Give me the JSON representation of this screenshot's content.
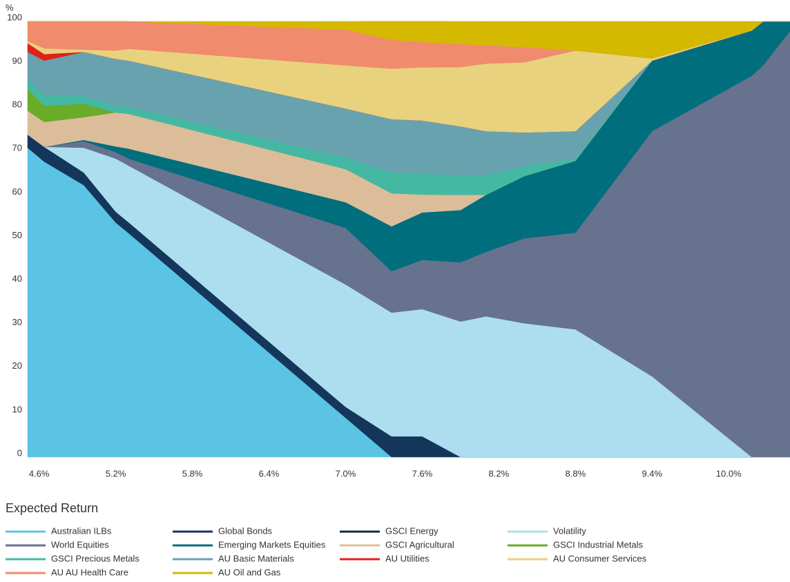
{
  "chart_data": {
    "type": "stacked_area",
    "y_unit": "%",
    "x_label": "Expected Return",
    "x": [
      4.51,
      4.64,
      4.95,
      5.2,
      5.3,
      7.0,
      7.36,
      7.6,
      7.9,
      8.1,
      8.4,
      8.8,
      9.4,
      10.18,
      10.27,
      10.48
    ],
    "xlim": [
      4.51,
      10.48
    ],
    "xticks": [
      {
        "value": 4.6,
        "label": "4.6%"
      },
      {
        "value": 5.2,
        "label": "5.2%"
      },
      {
        "value": 5.8,
        "label": "5.8%"
      },
      {
        "value": 6.4,
        "label": "6.4%"
      },
      {
        "value": 7.0,
        "label": "7.0%"
      },
      {
        "value": 7.6,
        "label": "7.6%"
      },
      {
        "value": 8.2,
        "label": "8.2%"
      },
      {
        "value": 8.8,
        "label": "8.8%"
      },
      {
        "value": 9.4,
        "label": "9.4%"
      },
      {
        "value": 10.0,
        "label": "10.0%"
      }
    ],
    "ylim": [
      0,
      100
    ],
    "yticks": [
      0,
      10,
      20,
      30,
      40,
      50,
      60,
      70,
      80,
      90,
      100
    ],
    "grid": false,
    "series": [
      {
        "name": "Australian ILBs",
        "color": "#5bc4e5",
        "values": [
          71,
          67.8,
          62.4,
          53.8,
          51.4,
          9.0,
          0,
          0,
          0,
          0,
          0,
          0,
          0,
          0,
          0,
          0
        ]
      },
      {
        "name": "Global Bonds",
        "color": "#14365b",
        "values": [
          3,
          3.4,
          2.9,
          2.5,
          2.5,
          2.5,
          4.75,
          4.75,
          0,
          0,
          0,
          0,
          0,
          0,
          0,
          0
        ]
      },
      {
        "name": "GSCI Energy",
        "color": "#0f2a4a",
        "values": [
          0,
          0,
          0,
          0,
          0,
          0,
          0,
          0,
          0,
          0,
          0,
          0,
          0,
          0,
          0,
          0
        ]
      },
      {
        "name": "Volatility",
        "color": "#acdef0",
        "values": [
          0,
          0,
          5.7,
          12.2,
          13,
          28.1,
          28.4,
          29.2,
          31.1,
          32.3,
          30.7,
          29.3,
          18.5,
          0,
          0,
          0
        ]
      },
      {
        "name": "World Equities",
        "color": "#67728f",
        "values": [
          0,
          0,
          1.5,
          1.5,
          1.6,
          13,
          9.5,
          11.3,
          13.6,
          14.8,
          19.5,
          22.2,
          56.3,
          87.5,
          89.9,
          97.8
        ]
      },
      {
        "name": "Emerging Markets Equities",
        "color": "#006e7d",
        "values": [
          0,
          0,
          0.3,
          1.3,
          2.3,
          5.9,
          10.3,
          10.9,
          12,
          13.1,
          14.3,
          16.5,
          16.2,
          10.4,
          10.1,
          2.2
        ]
      },
      {
        "name": "GSCI Agricultural",
        "color": "#dcbd9a",
        "values": [
          5.5,
          5.7,
          5.2,
          7.8,
          8,
          7.6,
          7.6,
          4.1,
          3.5,
          0,
          0,
          0,
          0,
          0,
          0,
          0
        ]
      },
      {
        "name": "GSCI Industrial Metals",
        "color": "#6aab2a",
        "values": [
          5,
          3.8,
          3.1,
          0,
          0,
          0,
          0,
          0,
          0,
          0,
          0,
          0,
          0,
          0,
          0,
          0
        ]
      },
      {
        "name": "GSCI Precious Metals",
        "color": "#45b8a4",
        "values": [
          2,
          2.5,
          1.8,
          1.6,
          1.6,
          2.7,
          4.8,
          4.8,
          4.5,
          4.5,
          2.4,
          0.5,
          0,
          0,
          0,
          0
        ]
      },
      {
        "name": "AU Basic Materials",
        "color": "#68a2ae",
        "values": [
          6.5,
          7.8,
          10.1,
          10.7,
          10.6,
          11.2,
          12.2,
          12.2,
          11.2,
          10.1,
          7.6,
          6.3,
          0,
          0,
          0,
          0
        ]
      },
      {
        "name": "AU Utilities",
        "color": "#e0201b",
        "values": [
          2,
          1.5,
          0,
          0,
          0,
          0,
          0,
          0,
          0,
          0,
          0,
          0,
          0,
          0,
          0,
          0
        ]
      },
      {
        "name": "AU Consumer Services",
        "color": "#e9d27e",
        "values": [
          0.5,
          1.3,
          0.5,
          1.9,
          2.7,
          9.9,
          11.6,
          12.2,
          13.6,
          15.5,
          16.1,
          18.5,
          0.5,
          0,
          0,
          0
        ]
      },
      {
        "name": "AU AU Health Care",
        "color": "#f08b6e",
        "values": [
          4.5,
          6.2,
          6.5,
          6.7,
          6.3,
          8.2,
          6.6,
          5.8,
          5.3,
          4.2,
          3.5,
          0,
          0,
          0,
          0,
          0
        ]
      },
      {
        "name": "AU Oil and Gas",
        "color": "#d5b800",
        "values": [
          0,
          0,
          0,
          0,
          0,
          1.9,
          4.3,
          4.8,
          5.2,
          5.5,
          5.9,
          6.7,
          8.5,
          2.1,
          0,
          0
        ]
      }
    ]
  }
}
